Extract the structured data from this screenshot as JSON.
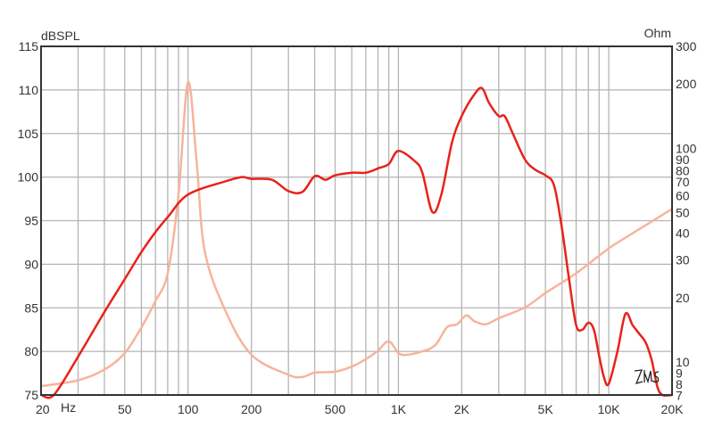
{
  "chart_data": {
    "type": "line",
    "title": "",
    "xlabel": "Hz",
    "ylabel": "dBSPL",
    "y2label": "Ohm",
    "x_scale": "log",
    "xlim": [
      20,
      20000
    ],
    "ylim": [
      75,
      115
    ],
    "y2_scale": "log",
    "y2lim": [
      7,
      300
    ],
    "grid": true,
    "x_ticks": [
      {
        "v": 20,
        "label": "20"
      },
      {
        "v": 50,
        "label": "50"
      },
      {
        "v": 100,
        "label": "100"
      },
      {
        "v": 200,
        "label": "200"
      },
      {
        "v": 500,
        "label": "500"
      },
      {
        "v": 1000,
        "label": "1K"
      },
      {
        "v": 2000,
        "label": "2K"
      },
      {
        "v": 5000,
        "label": "5K"
      },
      {
        "v": 10000,
        "label": "10K"
      },
      {
        "v": 20000,
        "label": "20K"
      }
    ],
    "x_unit_label": "Hz",
    "y_ticks": [
      75,
      80,
      85,
      90,
      95,
      100,
      105,
      110,
      115
    ],
    "y2_ticks": [
      300,
      200,
      100,
      90,
      80,
      70,
      60,
      50,
      40,
      30,
      20,
      10,
      9,
      8,
      7
    ],
    "logo": "LMS",
    "series": [
      {
        "axis": "left",
        "color": "#e8221b",
        "x": [
          20,
          23,
          30,
          40,
          50,
          60,
          70,
          80,
          100,
          150,
          180,
          200,
          250,
          300,
          350,
          400,
          450,
          500,
          600,
          700,
          800,
          900,
          1000,
          1200,
          1300,
          1450,
          1600,
          1800,
          2000,
          2300,
          2500,
          2700,
          3000,
          3200,
          3500,
          4000,
          4500,
          5000,
          5500,
          6000,
          6500,
          7000,
          7500,
          8000,
          8500,
          9000,
          9500,
          10000,
          11000,
          12000,
          13000,
          14000,
          15000,
          16000,
          17000,
          18000,
          20000
        ],
        "values": [
          75,
          75,
          79.4,
          84.5,
          88.3,
          91.4,
          93.7,
          95.4,
          98,
          99.5,
          100,
          99.8,
          99.7,
          98.4,
          98.3,
          100.1,
          99.7,
          100.2,
          100.5,
          100.5,
          101,
          101.5,
          103,
          101.8,
          100.5,
          96,
          98,
          104,
          107,
          109.5,
          110.2,
          108.5,
          107,
          107,
          105,
          102,
          100.8,
          100.2,
          99,
          94,
          88,
          83,
          82.5,
          83.3,
          82.5,
          79.5,
          77,
          76.3,
          80,
          84.3,
          83,
          82,
          81,
          79,
          76,
          75,
          75
        ]
      },
      {
        "axis": "right",
        "color": "#f7b49b",
        "x": [
          20,
          30,
          40,
          50,
          60,
          70,
          80,
          90,
          100,
          110,
          120,
          150,
          200,
          300,
          350,
          400,
          500,
          600,
          700,
          800,
          900,
          1000,
          1100,
          1300,
          1500,
          1700,
          1900,
          2100,
          2300,
          2600,
          3000,
          4000,
          5000,
          7000,
          10000,
          13000,
          20000
        ],
        "values": [
          7.7,
          8.2,
          9.2,
          11,
          14.5,
          19.3,
          26,
          60,
          204,
          85,
          33,
          17.5,
          10.8,
          8.7,
          8.5,
          8.9,
          9.0,
          9.5,
          10.3,
          11.3,
          12.5,
          11,
          10.8,
          11.2,
          12,
          14.5,
          15,
          16.5,
          15.5,
          15,
          16,
          18,
          21,
          26,
          34,
          40,
          52
        ]
      }
    ]
  }
}
